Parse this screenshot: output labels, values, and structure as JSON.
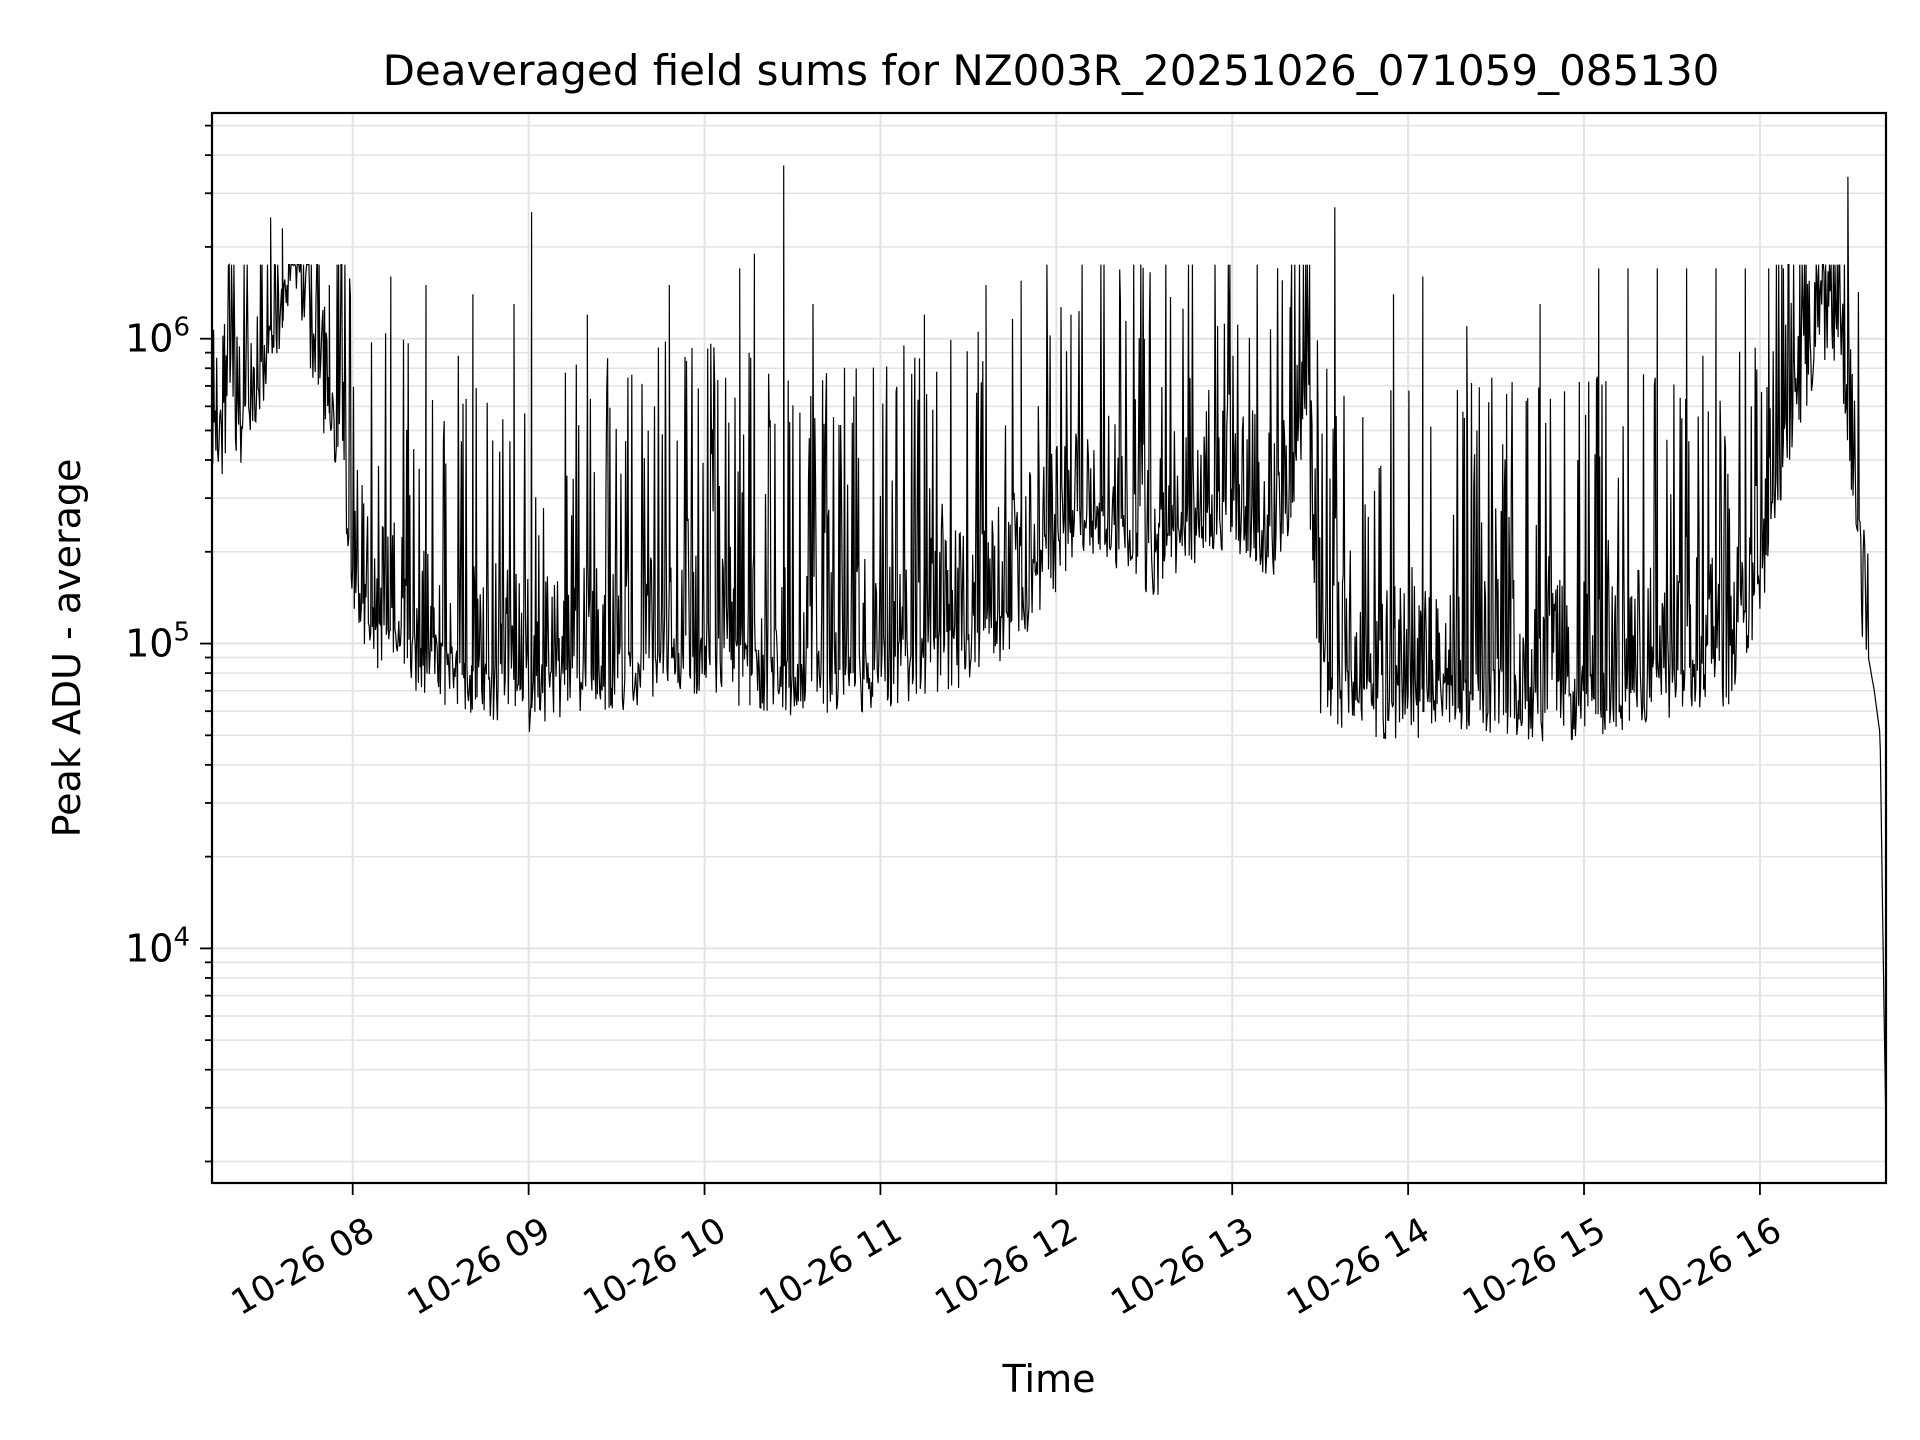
{
  "chart_data": {
    "type": "line",
    "title": "Deaveraged field sums for NZ003R_20251026_071059_085130",
    "xlabel": "Time",
    "ylabel": "Peak ADU - average",
    "y_scale": "log",
    "ylim": [
      1700,
      5500000
    ],
    "xlim": [
      "2025-10-26 07:12",
      "2025-10-26 16:43"
    ],
    "grid": true,
    "x_ticks": [
      {
        "t": "2025-10-26 08:00",
        "label": "10-26 08"
      },
      {
        "t": "2025-10-26 09:00",
        "label": "10-26 09"
      },
      {
        "t": "2025-10-26 10:00",
        "label": "10-26 10"
      },
      {
        "t": "2025-10-26 11:00",
        "label": "10-26 11"
      },
      {
        "t": "2025-10-26 12:00",
        "label": "10-26 12"
      },
      {
        "t": "2025-10-26 13:00",
        "label": "10-26 13"
      },
      {
        "t": "2025-10-26 14:00",
        "label": "10-26 14"
      },
      {
        "t": "2025-10-26 15:00",
        "label": "10-26 15"
      },
      {
        "t": "2025-10-26 16:00",
        "label": "10-26 16"
      }
    ],
    "y_ticks": [
      {
        "value": 10000,
        "base": "10",
        "exp": "4"
      },
      {
        "value": 100000,
        "base": "10",
        "exp": "5"
      },
      {
        "value": 1000000,
        "base": "10",
        "exp": "6"
      }
    ],
    "series": [
      {
        "color": "#000000",
        "x": [
          "2025-10-26 07:12",
          "2025-10-26 07:16",
          "2025-10-26 07:20",
          "2025-10-26 07:24",
          "2025-10-26 07:28",
          "2025-10-26 07:30",
          "2025-10-26 07:33",
          "2025-10-26 07:36",
          "2025-10-26 07:40",
          "2025-10-26 07:44",
          "2025-10-26 07:48",
          "2025-10-26 07:52",
          "2025-10-26 07:56",
          "2025-10-26 08:00",
          "2025-10-26 08:10",
          "2025-10-26 08:20",
          "2025-10-26 08:30",
          "2025-10-26 08:40",
          "2025-10-26 08:50",
          "2025-10-26 09:01",
          "2025-10-26 09:10",
          "2025-10-26 09:20",
          "2025-10-26 09:30",
          "2025-10-26 09:40",
          "2025-10-26 09:50",
          "2025-10-26 10:00",
          "2025-10-26 10:10",
          "2025-10-26 10:18",
          "2025-10-26 10:25",
          "2025-10-26 10:35",
          "2025-10-26 10:45",
          "2025-10-26 10:55",
          "2025-10-26 11:05",
          "2025-10-26 11:15",
          "2025-10-26 11:25",
          "2025-10-26 11:35",
          "2025-10-26 11:45",
          "2025-10-26 11:55",
          "2025-10-26 12:05",
          "2025-10-26 12:15",
          "2025-10-26 12:25",
          "2025-10-26 12:35",
          "2025-10-26 12:45",
          "2025-10-26 12:55",
          "2025-10-26 13:05",
          "2025-10-26 13:15",
          "2025-10-26 13:20",
          "2025-10-26 13:25",
          "2025-10-26 13:30",
          "2025-10-26 13:40",
          "2025-10-26 13:50",
          "2025-10-26 14:00",
          "2025-10-26 14:10",
          "2025-10-26 14:20",
          "2025-10-26 14:30",
          "2025-10-26 14:40",
          "2025-10-26 14:50",
          "2025-10-26 15:00",
          "2025-10-26 15:10",
          "2025-10-26 15:20",
          "2025-10-26 15:30",
          "2025-10-26 15:40",
          "2025-10-26 15:50",
          "2025-10-26 16:00",
          "2025-10-26 16:05",
          "2025-10-26 16:10",
          "2025-10-26 16:15",
          "2025-10-26 16:20",
          "2025-10-26 16:25",
          "2025-10-26 16:28",
          "2025-10-26 16:31",
          "2025-10-26 16:34",
          "2025-10-26 16:37",
          "2025-10-26 16:39",
          "2025-10-26 16:41",
          "2025-10-26 16:42",
          "2025-10-26 16:43"
        ],
        "y": [
          500000,
          450000,
          520000,
          480000,
          600000,
          800000,
          900000,
          1300000,
          2000000,
          1100000,
          700000,
          550000,
          450000,
          150000,
          100000,
          90000,
          80000,
          75000,
          70000,
          65000,
          70000,
          72000,
          75000,
          80000,
          85000,
          85000,
          80000,
          75000,
          70000,
          70000,
          72000,
          75000,
          80000,
          85000,
          90000,
          100000,
          120000,
          160000,
          220000,
          250000,
          200000,
          180000,
          220000,
          250000,
          230000,
          200000,
          300000,
          600000,
          70000,
          65000,
          60000,
          60000,
          62000,
          65000,
          65000,
          62000,
          60000,
          62000,
          65000,
          70000,
          70000,
          75000,
          80000,
          150000,
          300000,
          500000,
          700000,
          1000000,
          1100000,
          900000,
          400000,
          150000,
          90000,
          70000,
          50000,
          10000,
          2500
        ],
        "peaks_x": [
          "2025-10-26 07:32",
          "2025-10-26 07:36",
          "2025-10-26 07:52",
          "2025-10-26 08:13",
          "2025-10-26 08:25",
          "2025-10-26 08:41",
          "2025-10-26 08:55",
          "2025-10-26 09:01",
          "2025-10-26 09:20",
          "2025-10-26 09:48",
          "2025-10-26 10:12",
          "2025-10-26 10:17",
          "2025-10-26 10:27",
          "2025-10-26 10:37",
          "2025-10-26 11:15",
          "2025-10-26 11:36",
          "2025-10-26 11:48",
          "2025-10-26 12:05",
          "2025-10-26 12:30",
          "2025-10-26 12:55",
          "2025-10-26 13:20",
          "2025-10-26 13:35",
          "2025-10-26 13:55",
          "2025-10-26 14:05",
          "2025-10-26 14:20",
          "2025-10-26 14:45",
          "2025-10-26 15:05",
          "2025-10-26 15:15",
          "2025-10-26 15:25",
          "2025-10-26 15:35",
          "2025-10-26 15:45",
          "2025-10-26 15:55",
          "2025-10-26 16:03",
          "2025-10-26 16:08",
          "2025-10-26 16:27",
          "2025-10-26 16:30"
        ],
        "peaks_y": [
          2500000,
          2300000,
          1500000,
          1600000,
          1500000,
          1400000,
          1300000,
          2600000,
          1200000,
          1500000,
          1700000,
          1900000,
          3700000,
          1300000,
          1200000,
          1500000,
          1550000,
          1200000,
          1000000,
          1100000,
          1200000,
          2700000,
          1400000,
          1600000,
          1100000,
          1300000,
          1700000,
          1700000,
          1700000,
          1700000,
          1700000,
          1700000,
          1700000,
          1700000,
          1700000,
          3400000
        ]
      }
    ]
  }
}
